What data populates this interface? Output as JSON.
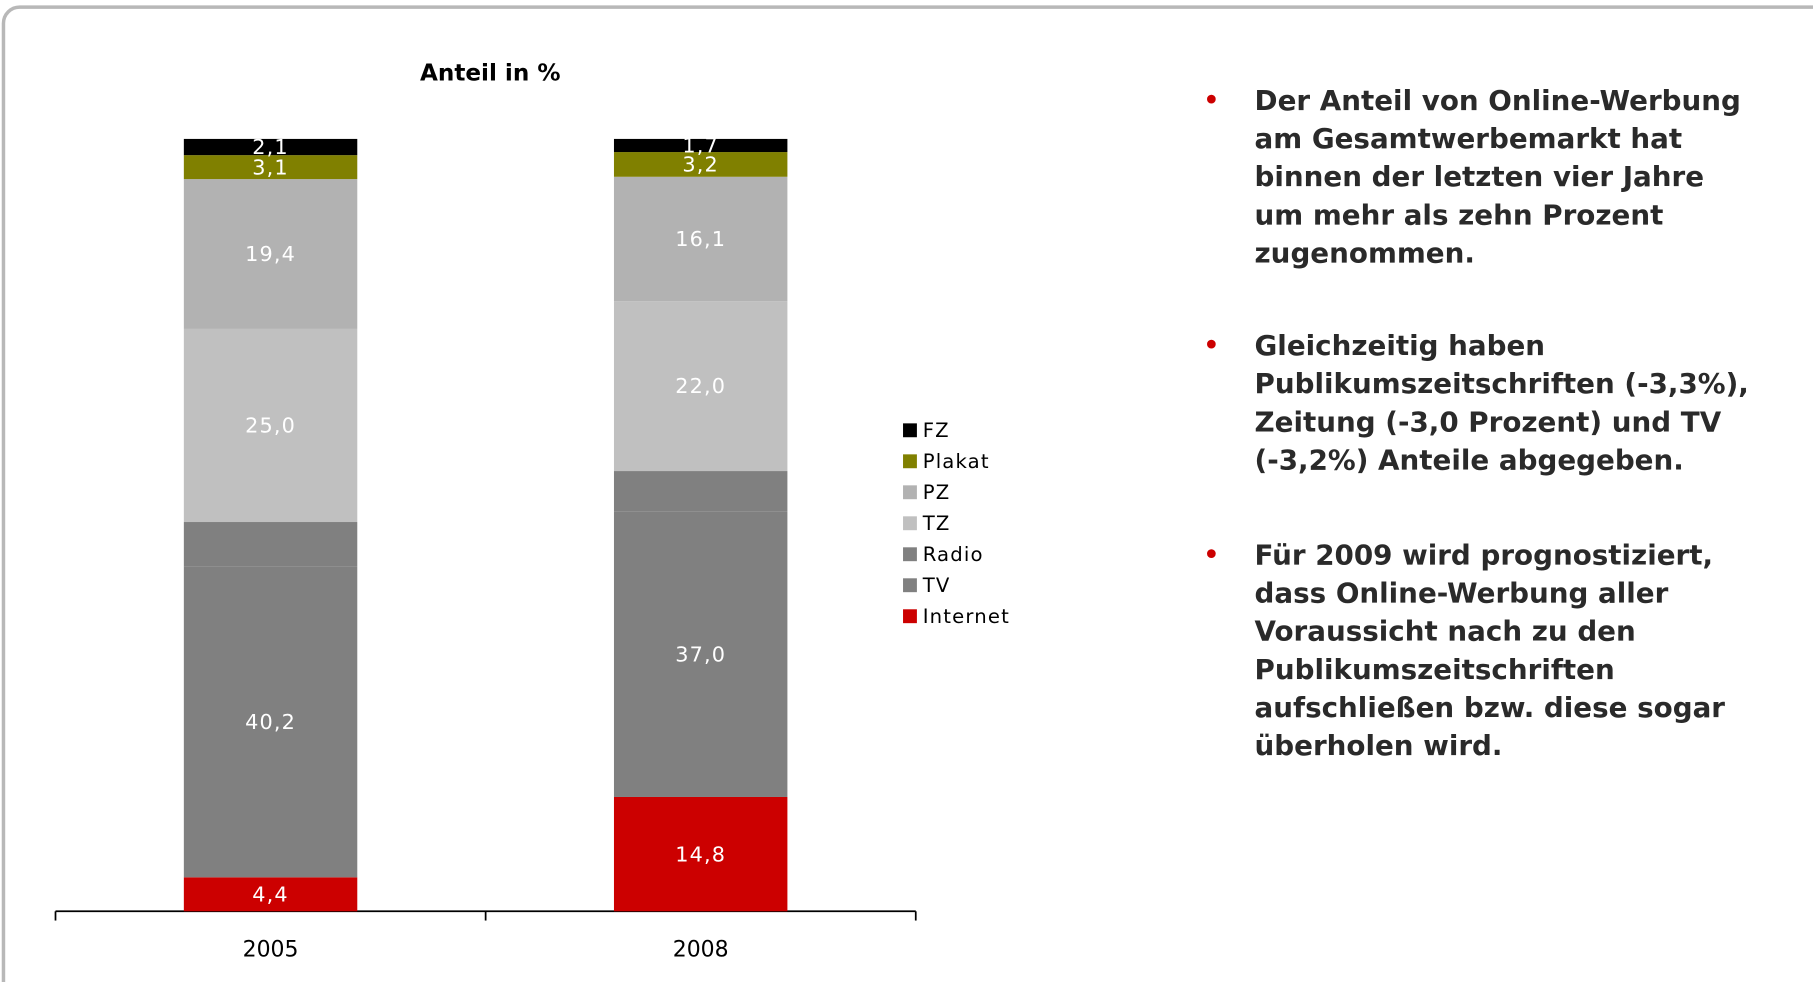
{
  "chart_data": {
    "type": "stacked_bar",
    "title": "Anteil in %",
    "categories": [
      "2005",
      "2008"
    ],
    "ylim": [
      0,
      100
    ],
    "series": [
      {
        "name": "Internet",
        "color": "#cc0000",
        "values": [
          4.4,
          14.8
        ],
        "value_labels": [
          "4,4",
          "14,8"
        ]
      },
      {
        "name": "TV",
        "color": "#808080",
        "values": [
          40.2,
          37.0
        ],
        "value_labels": [
          "40,2",
          "37,0"
        ]
      },
      {
        "name": "Radio",
        "color": "#808080",
        "values": [
          5.8,
          5.2
        ]
      },
      {
        "name": "TZ",
        "color": "#c0c0c0",
        "values": [
          25.0,
          22.0
        ],
        "value_labels": [
          "25,0",
          "22,0"
        ]
      },
      {
        "name": "PZ",
        "color": "#b2b2b2",
        "values": [
          19.4,
          16.1
        ],
        "value_labels": [
          "19,4",
          "16,1"
        ]
      },
      {
        "name": "Plakat",
        "color": "#808000",
        "values": [
          3.1,
          3.2
        ],
        "value_labels": [
          "3,1",
          "3,2"
        ]
      },
      {
        "name": "FZ",
        "color": "#000000",
        "values": [
          2.1,
          1.7
        ],
        "value_labels": [
          "2,1",
          "1,7"
        ]
      }
    ]
  },
  "bullets": [
    [
      "Der Anteil von Online-Werbung",
      "am Gesamtwerbemarkt hat",
      "binnen der letzten vier Jahre",
      "um mehr als zehn Prozent",
      "zugenommen."
    ],
    [
      "Gleichzeitig haben",
      "Publikumszeitschriften (-3,3%),",
      "Zeitung (-3,0 Prozent) und TV",
      "(-3,2%) Anteile abgegeben."
    ],
    [
      "Für 2009 wird prognostiziert,",
      "dass Online-Werbung aller",
      "Voraussicht nach zu den",
      "Publikumszeitschriften",
      "aufschließen bzw. diese sogar",
      "überholen wird."
    ]
  ]
}
